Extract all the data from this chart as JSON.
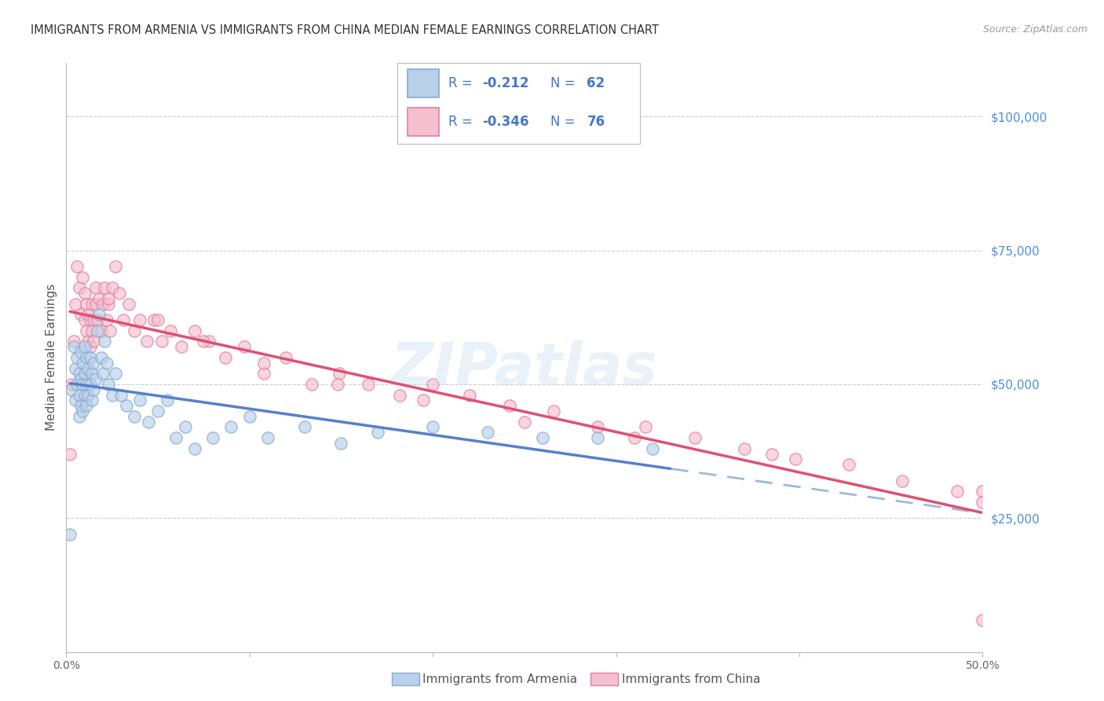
{
  "title": "IMMIGRANTS FROM ARMENIA VS IMMIGRANTS FROM CHINA MEDIAN FEMALE EARNINGS CORRELATION CHART",
  "source": "Source: ZipAtlas.com",
  "ylabel": "Median Female Earnings",
  "xlim": [
    0.0,
    0.5
  ],
  "ylim": [
    0,
    110000
  ],
  "yticks": [
    0,
    25000,
    50000,
    75000,
    100000
  ],
  "ytick_labels": [
    "",
    "$25,000",
    "$50,000",
    "$75,000",
    "$100,000"
  ],
  "xticks": [
    0.0,
    0.1,
    0.2,
    0.3,
    0.4,
    0.5
  ],
  "xtick_labels": [
    "0.0%",
    "",
    "",
    "",
    "",
    "50.0%"
  ],
  "armenia_fill": "#b8d0ea",
  "armenia_edge": "#88aacc",
  "china_fill": "#f5bfce",
  "china_edge": "#e080a0",
  "trend_armenia": "#5580cc",
  "trend_china": "#e05070",
  "trend_dashed": "#99bbdd",
  "watermark": "ZIPatlas",
  "bg": "#ffffff",
  "grid_color": "#cccccc",
  "label_armenia": "Immigrants from Armenia",
  "label_china": "Immigrants from China",
  "r_armenia": "-0.212",
  "n_armenia": "62",
  "r_china": "-0.346",
  "n_china": "76",
  "text_color": "#4477cc",
  "r_color": "#4477cc",
  "n_color": "#4477cc",
  "armenia_x": [
    0.002,
    0.003,
    0.004,
    0.005,
    0.005,
    0.006,
    0.006,
    0.007,
    0.007,
    0.007,
    0.008,
    0.008,
    0.008,
    0.009,
    0.009,
    0.009,
    0.01,
    0.01,
    0.01,
    0.011,
    0.011,
    0.011,
    0.012,
    0.012,
    0.013,
    0.013,
    0.014,
    0.014,
    0.015,
    0.015,
    0.016,
    0.017,
    0.018,
    0.019,
    0.02,
    0.021,
    0.022,
    0.023,
    0.025,
    0.027,
    0.03,
    0.033,
    0.037,
    0.04,
    0.045,
    0.05,
    0.055,
    0.06,
    0.065,
    0.07,
    0.08,
    0.09,
    0.1,
    0.11,
    0.13,
    0.15,
    0.17,
    0.2,
    0.23,
    0.26,
    0.29,
    0.32
  ],
  "armenia_y": [
    22000,
    49000,
    57000,
    53000,
    47000,
    55000,
    50000,
    52000,
    48000,
    44000,
    56000,
    51000,
    46000,
    54000,
    50000,
    45000,
    57000,
    52000,
    48000,
    55000,
    50000,
    46000,
    53000,
    48000,
    55000,
    50000,
    52000,
    47000,
    54000,
    49000,
    51000,
    60000,
    63000,
    55000,
    52000,
    58000,
    54000,
    50000,
    48000,
    52000,
    48000,
    46000,
    44000,
    47000,
    43000,
    45000,
    47000,
    40000,
    42000,
    38000,
    40000,
    42000,
    44000,
    40000,
    42000,
    39000,
    41000,
    42000,
    41000,
    40000,
    40000,
    38000
  ],
  "china_x": [
    0.002,
    0.003,
    0.004,
    0.005,
    0.006,
    0.007,
    0.008,
    0.009,
    0.01,
    0.01,
    0.011,
    0.011,
    0.012,
    0.012,
    0.013,
    0.013,
    0.014,
    0.014,
    0.015,
    0.015,
    0.016,
    0.016,
    0.017,
    0.018,
    0.019,
    0.02,
    0.021,
    0.022,
    0.023,
    0.024,
    0.025,
    0.027,
    0.029,
    0.031,
    0.034,
    0.037,
    0.04,
    0.044,
    0.048,
    0.052,
    0.057,
    0.063,
    0.07,
    0.078,
    0.087,
    0.097,
    0.108,
    0.12,
    0.134,
    0.149,
    0.165,
    0.182,
    0.2,
    0.22,
    0.242,
    0.266,
    0.29,
    0.316,
    0.343,
    0.37,
    0.398,
    0.427,
    0.456,
    0.486,
    0.5,
    0.5,
    0.5,
    0.385,
    0.31,
    0.25,
    0.195,
    0.148,
    0.108,
    0.075,
    0.05,
    0.023
  ],
  "china_y": [
    37000,
    50000,
    58000,
    65000,
    72000,
    68000,
    63000,
    70000,
    62000,
    67000,
    60000,
    65000,
    58000,
    63000,
    57000,
    62000,
    60000,
    65000,
    58000,
    62000,
    68000,
    65000,
    62000,
    66000,
    60000,
    65000,
    68000,
    62000,
    65000,
    60000,
    68000,
    72000,
    67000,
    62000,
    65000,
    60000,
    62000,
    58000,
    62000,
    58000,
    60000,
    57000,
    60000,
    58000,
    55000,
    57000,
    52000,
    55000,
    50000,
    52000,
    50000,
    48000,
    50000,
    48000,
    46000,
    45000,
    42000,
    42000,
    40000,
    38000,
    36000,
    35000,
    32000,
    30000,
    30000,
    28000,
    6000,
    37000,
    40000,
    43000,
    47000,
    50000,
    54000,
    58000,
    62000,
    66000
  ]
}
